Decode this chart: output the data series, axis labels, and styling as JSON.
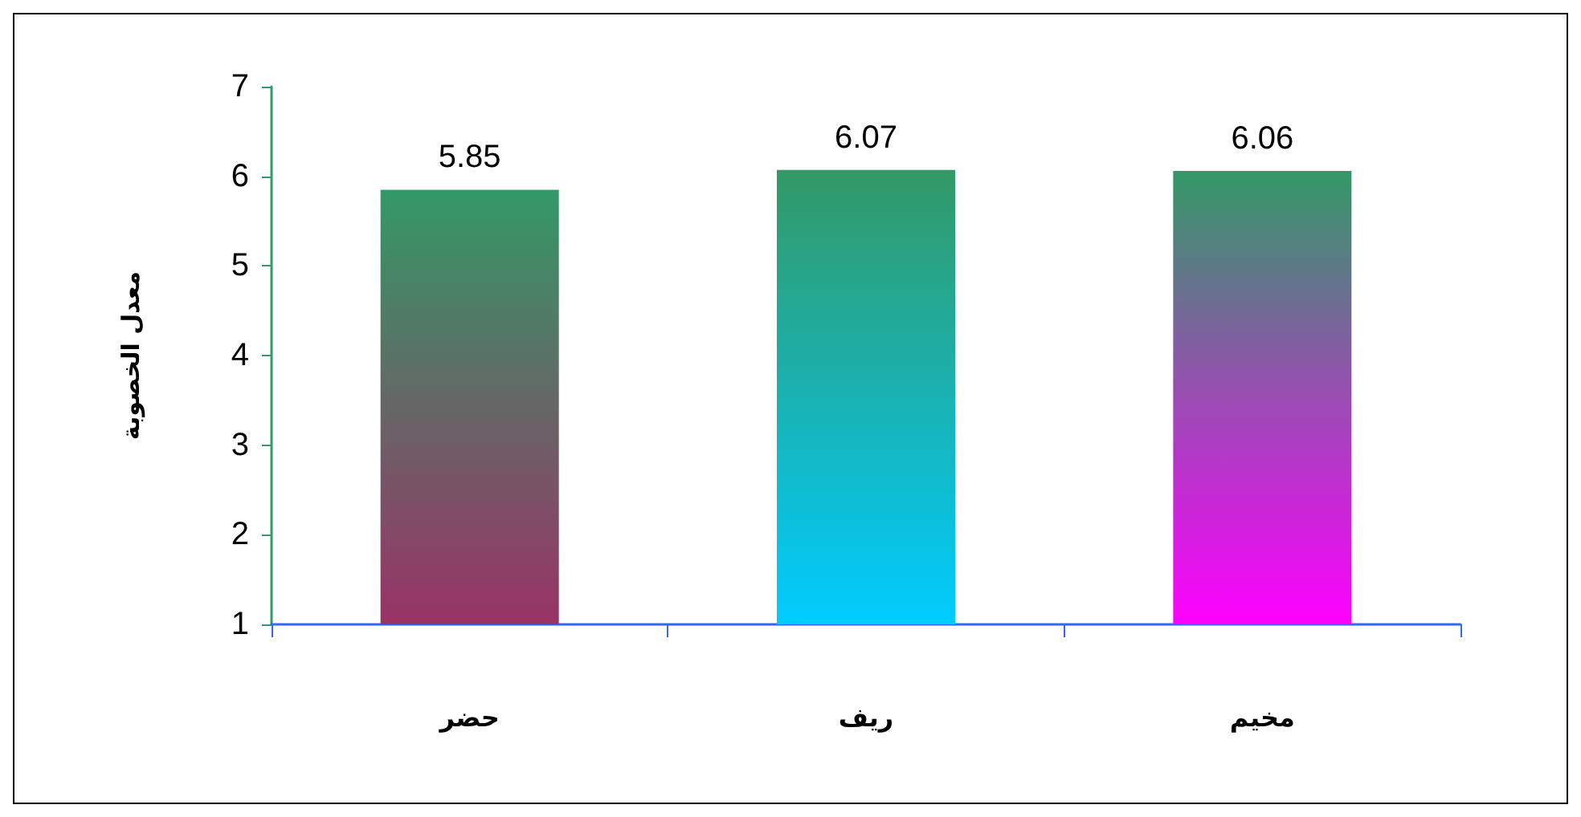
{
  "chart_data": {
    "type": "bar",
    "ylabel": "معدل الخصوبة",
    "categories": [
      "حضر",
      "ريف",
      "مخيم"
    ],
    "values": [
      5.85,
      6.07,
      6.06
    ],
    "color": "#339966",
    "colors": [
      "#993366",
      "#00ccff",
      "#ff00ff"
    ],
    "ylim": [
      1,
      7
    ],
    "yticks": [
      1,
      2,
      3,
      4,
      5,
      6,
      7
    ],
    "data_labels": true,
    "grid": false
  }
}
